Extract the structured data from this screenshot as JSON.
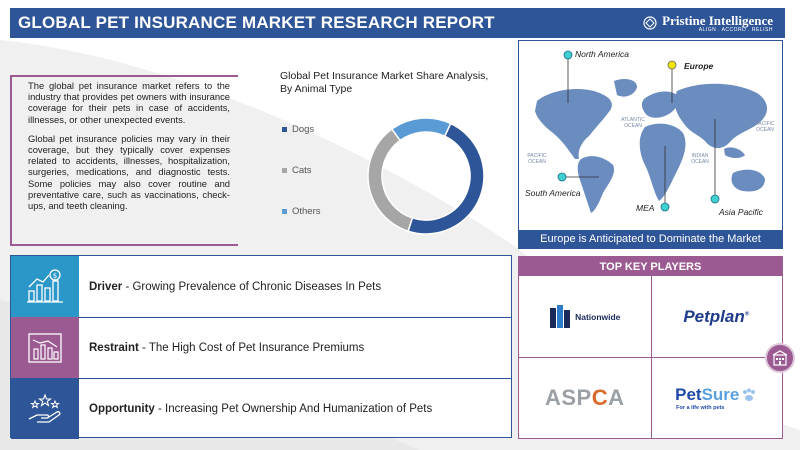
{
  "header": {
    "title": "GLOBAL PET INSURANCE MARKET RESEARCH REPORT",
    "brand_name": "Pristine Intelligence",
    "brand_tagline": "ALIGN . ACCORD . RELISH"
  },
  "intro": {
    "paragraph1": "The global pet insurance market refers to the industry that provides pet owners with insurance coverage for their pets in case of accidents, illnesses, or other unexpected events.",
    "paragraph2": "Global pet insurance policies may vary in their coverage, but they typically cover expenses related to accidents, illnesses, hospitalization, surgeries, medications, and diagnostic tests. Some policies may also cover routine and preventative care, such as vaccinations, check-ups, and teeth cleaning."
  },
  "chart_data": {
    "type": "pie",
    "title": "Global Pet Insurance Market Share Analysis, By Animal Type",
    "donut": true,
    "categories": [
      "Dogs",
      "Cats",
      "Others"
    ],
    "values": [
      48,
      35,
      17
    ],
    "colors": [
      "#2e5597",
      "#a6a6a6",
      "#5b9bd5"
    ],
    "legend_position": "left"
  },
  "map": {
    "regions": [
      {
        "name": "North America",
        "bold": false,
        "dot_color": "#40d0d0"
      },
      {
        "name": "Europe",
        "bold": true,
        "dot_color": "#f2e600"
      },
      {
        "name": "South America",
        "bold": false,
        "dot_color": "#40d0d0"
      },
      {
        "name": "MEA",
        "bold": false,
        "dot_color": "#40d0d0"
      },
      {
        "name": "Asia Pacific",
        "bold": false,
        "dot_color": "#40d0d0"
      }
    ],
    "oceans": {
      "atlantic": "ATLANTIC OCEAN",
      "pacific_left": "PACIFIC OCEAN",
      "pacific_right": "PACIFIC OCEAN",
      "indian": "INDIAN OCEAN"
    },
    "caption": "Europe is Anticipated to Dominate the Market"
  },
  "factors": [
    {
      "label": "Driver",
      "text": " - Growing Prevalence of Chronic Diseases In Pets",
      "icon_bg": "#2b97c9",
      "icon": "money-growth-icon"
    },
    {
      "label": "Restraint",
      "text": " - The High Cost of Pet Insurance Premiums",
      "icon_bg": "#9b5a91",
      "icon": "declining-chart-icon"
    },
    {
      "label": "Opportunity",
      "text": " - Increasing Pet Ownership And Humanization of Pets",
      "icon_bg": "#2e5597",
      "icon": "hand-stars-icon"
    }
  ],
  "players": {
    "heading": "TOP KEY PLAYERS",
    "nationwide": "Nationwide",
    "petplan": "Petplan",
    "aspca_pre": "ASP",
    "aspca_accent": "C",
    "aspca_post": "A",
    "petsure_a": "Pet",
    "petsure_b": "Sure",
    "petsure_tag": "For a life with pets"
  }
}
